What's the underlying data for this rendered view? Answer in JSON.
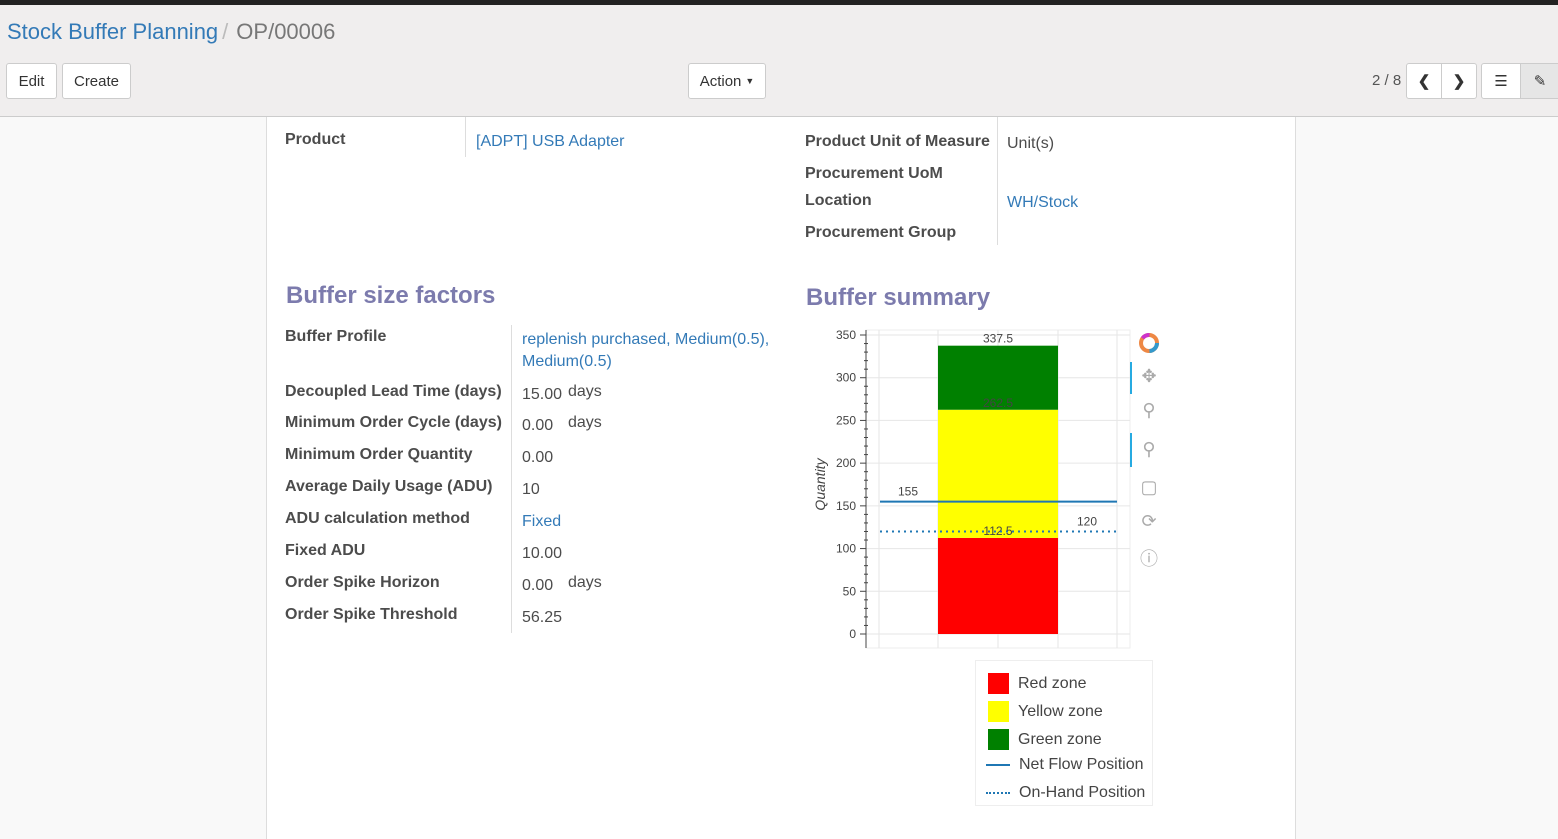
{
  "breadcrumb": {
    "parent": "Stock Buffer Planning",
    "current": "OP/00006"
  },
  "toolbar": {
    "edit": "Edit",
    "create": "Create",
    "action": "Action",
    "pager": "2 / 8"
  },
  "form": {
    "product_label": "Product",
    "product_value": "[ADPT] USB Adapter",
    "uom_label": "Product Unit of Measure",
    "uom_value": "Unit(s)",
    "proc_uom_label": "Procurement UoM",
    "location_label": "Location",
    "location_value": "WH/Stock",
    "proc_group_label": "Procurement Group"
  },
  "factors": {
    "title": "Buffer size factors",
    "rows": [
      {
        "label": "Buffer Profile",
        "value": "replenish purchased, Medium(0.5),",
        "value2": "Medium(0.5)"
      },
      {
        "label": "Decoupled Lead Time (days)",
        "value": "15.00",
        "unit": "days"
      },
      {
        "label": "Minimum Order Cycle (days)",
        "value": "0.00",
        "unit": "days"
      },
      {
        "label": "Minimum Order Quantity",
        "value": "0.00"
      },
      {
        "label": "Average Daily Usage (ADU)",
        "value": "10"
      },
      {
        "label": "ADU calculation method",
        "value": "Fixed"
      },
      {
        "label": "Fixed ADU",
        "value": "10.00"
      },
      {
        "label": "Order Spike Horizon",
        "value": "0.00",
        "unit": "days"
      },
      {
        "label": "Order Spike Threshold",
        "value": "56.25"
      }
    ]
  },
  "summary": {
    "title": "Buffer summary"
  },
  "chart_data": {
    "type": "bar",
    "stacked": true,
    "ylabel": "Quantity",
    "ylim": [
      0,
      350
    ],
    "yticks": [
      0,
      50,
      100,
      150,
      200,
      250,
      300,
      350
    ],
    "zones": [
      {
        "name": "Red zone",
        "from": 0,
        "to": 112.5,
        "color": "#ff0000",
        "label": "112.5"
      },
      {
        "name": "Yellow zone",
        "from": 112.5,
        "to": 262.5,
        "color": "#ffff00",
        "label": "262.5"
      },
      {
        "name": "Green zone",
        "from": 262.5,
        "to": 337.5,
        "color": "#008000",
        "label": "337.5"
      }
    ],
    "lines": [
      {
        "name": "Net Flow Position",
        "value": 155,
        "style": "solid",
        "color": "#1f77b4",
        "label": "155"
      },
      {
        "name": "On-Hand Position",
        "value": 120,
        "style": "dotted",
        "color": "#1f77b4",
        "label": "120"
      }
    ],
    "grid": true,
    "legend": "bottom"
  }
}
